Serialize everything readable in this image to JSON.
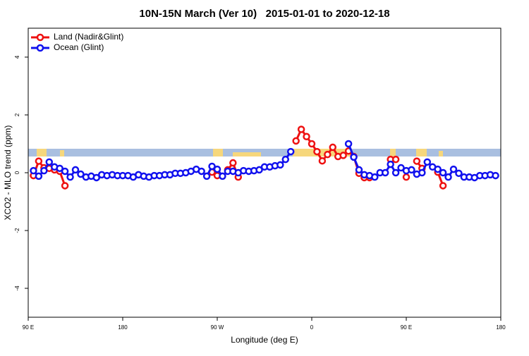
{
  "chart_data": {
    "type": "line",
    "title": "10N-15N March (Ver 10)   2015-01-01 to 2020-12-18",
    "x_label": "Longitude (deg E)",
    "y_label": "XCO2 - MLO trend (ppm)",
    "xlim": [
      90,
      540
    ],
    "ylim": [
      -5,
      5
    ],
    "xticks": [
      {
        "value": 90,
        "label": "90 E"
      },
      {
        "value": 180,
        "label": "180"
      },
      {
        "value": 270,
        "label": "90 W"
      },
      {
        "value": 360,
        "label": "0"
      },
      {
        "value": 450,
        "label": "90 E"
      },
      {
        "value": 540,
        "label": "180"
      }
    ],
    "yticks": [
      -4,
      -2,
      0,
      2,
      4
    ],
    "legend": "top-left",
    "x": [
      95,
      100,
      105,
      110,
      115,
      120,
      125,
      130,
      135,
      140,
      145,
      150,
      155,
      160,
      165,
      170,
      175,
      180,
      185,
      190,
      195,
      200,
      205,
      210,
      215,
      220,
      225,
      230,
      235,
      240,
      245,
      250,
      255,
      260,
      265,
      270,
      275,
      280,
      285,
      290,
      295,
      300,
      305,
      310,
      315,
      320,
      325,
      330,
      335,
      340,
      345,
      350,
      355,
      360,
      365,
      370,
      375,
      380,
      385,
      390,
      395,
      400,
      405,
      410,
      415,
      420,
      425,
      430,
      435,
      440,
      445,
      450,
      455,
      460,
      465,
      470,
      475,
      480,
      485,
      490,
      495,
      500,
      505,
      510,
      515,
      520,
      525,
      530,
      535
    ],
    "series": [
      {
        "name": "Land (Nadir&Glint)",
        "color": "#ee1111",
        "values": [
          -0.1,
          0.4,
          0.17,
          0.15,
          0.1,
          0.05,
          -0.45,
          null,
          null,
          null,
          null,
          null,
          null,
          null,
          null,
          null,
          null,
          null,
          null,
          null,
          null,
          null,
          null,
          null,
          null,
          null,
          null,
          null,
          null,
          null,
          null,
          null,
          null,
          null,
          0.02,
          -0.1,
          null,
          0.1,
          0.34,
          -0.15,
          null,
          null,
          null,
          null,
          null,
          null,
          null,
          null,
          null,
          null,
          1.1,
          1.5,
          1.25,
          1.0,
          0.73,
          0.41,
          0.63,
          0.88,
          0.56,
          0.6,
          0.75,
          0.56,
          -0.02,
          -0.17,
          -0.17,
          null,
          null,
          null,
          0.46,
          0.46,
          null,
          -0.15,
          null,
          0.4,
          0.15,
          null,
          null,
          0.02,
          -0.45,
          null,
          null,
          null,
          null,
          null,
          null,
          null,
          null,
          null,
          null
        ]
      },
      {
        "name": "Ocean (Glint)",
        "color": "#1111ee",
        "values": [
          0.07,
          -0.12,
          0.07,
          0.37,
          0.2,
          0.15,
          0.05,
          -0.15,
          0.1,
          -0.05,
          -0.15,
          -0.12,
          -0.17,
          -0.07,
          -0.1,
          -0.07,
          -0.1,
          -0.1,
          -0.1,
          -0.15,
          -0.07,
          -0.12,
          -0.15,
          -0.1,
          -0.1,
          -0.07,
          -0.07,
          -0.02,
          -0.02,
          0,
          0.05,
          0.12,
          0.05,
          -0.12,
          0.22,
          0.12,
          -0.12,
          0.05,
          0.05,
          0,
          0.07,
          0.05,
          0.07,
          0.1,
          0.2,
          0.2,
          0.24,
          0.27,
          0.46,
          0.73,
          null,
          null,
          null,
          null,
          null,
          null,
          null,
          null,
          null,
          null,
          1.0,
          0.54,
          0.1,
          -0.07,
          -0.1,
          -0.15,
          0,
          0,
          0.29,
          0,
          0.17,
          0.07,
          0.1,
          -0.05,
          0,
          0.37,
          0.2,
          0.12,
          0,
          -0.15,
          0.12,
          -0.02,
          -0.15,
          -0.15,
          -0.17,
          -0.1,
          -0.1,
          -0.07,
          -0.1
        ]
      }
    ]
  }
}
